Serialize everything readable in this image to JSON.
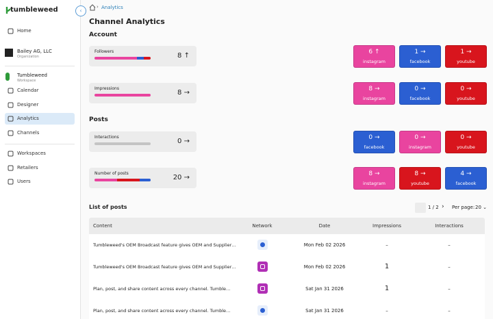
{
  "sidebar": {
    "brand": "tumbleweed",
    "nav_top": [
      "Home"
    ],
    "organization": {
      "name": "Bailey AG, LLC",
      "role": "Organization"
    },
    "workspace": {
      "name": "Tumbleweed",
      "role": "Workspace"
    },
    "nav_workspace": [
      "Calendar",
      "Designer",
      "Analytics",
      "Channels"
    ],
    "nav_bottom": [
      "Workspaces",
      "Retailers",
      "Users"
    ]
  },
  "breadcrumb": "Analytics",
  "title": "Channel Analytics",
  "sections": [
    {
      "heading": "Account",
      "metrics": [
        {
          "label": "Followers",
          "value": 8,
          "trend": "↑",
          "networks": [
            {
              "value": 6,
              "trend": "↑",
              "name": "instagram"
            },
            {
              "value": 1,
              "trend": "→",
              "name": "facebook"
            },
            {
              "value": 1,
              "trend": "→",
              "name": "youtube"
            }
          ]
        },
        {
          "label": "Impressions",
          "value": 8,
          "trend": "→",
          "networks": [
            {
              "value": 8,
              "trend": "→",
              "name": "instagram"
            },
            {
              "value": 0,
              "trend": "→",
              "name": "facebook"
            },
            {
              "value": 0,
              "trend": "→",
              "name": "youtube"
            }
          ]
        }
      ]
    },
    {
      "heading": "Posts",
      "metrics": [
        {
          "label": "Interactions",
          "value": 0,
          "trend": "→",
          "networks": [
            {
              "value": 0,
              "trend": "→",
              "name": "facebook"
            },
            {
              "value": 0,
              "trend": "→",
              "name": "instagram"
            },
            {
              "value": 0,
              "trend": "→",
              "name": "youtube"
            }
          ]
        },
        {
          "label": "Number of posts",
          "value": 20,
          "trend": "→",
          "networks": [
            {
              "value": 8,
              "trend": "→",
              "name": "instagram"
            },
            {
              "value": 8,
              "trend": "→",
              "name": "youtube"
            },
            {
              "value": 4,
              "trend": "→",
              "name": "facebook"
            }
          ]
        }
      ]
    }
  ],
  "posts": {
    "heading": "List of posts",
    "page": "1 / 2",
    "per_page_label": "Per page:",
    "per_page": 20,
    "columns": [
      "Content",
      "Network",
      "Date",
      "Impressions",
      "Interactions"
    ],
    "rows": [
      [
        "Tumbleweed's OEM Broadcast feature gives OEM and Supplier…",
        "Mon Feb 02 2026",
        "–",
        "–"
      ],
      [
        "Tumbleweed's OEM Broadcast feature gives OEM and Supplier…",
        "Mon Feb 02 2026",
        "1",
        "–"
      ],
      [
        "Plan, post, and share content across every channel. Tumble…",
        "Sat Jan 31 2026",
        "1",
        "–"
      ],
      [
        "Plan, post, and share content across every channel. Tumble…",
        "Sat Jan 31 2026",
        "–",
        "–"
      ]
    ]
  }
}
